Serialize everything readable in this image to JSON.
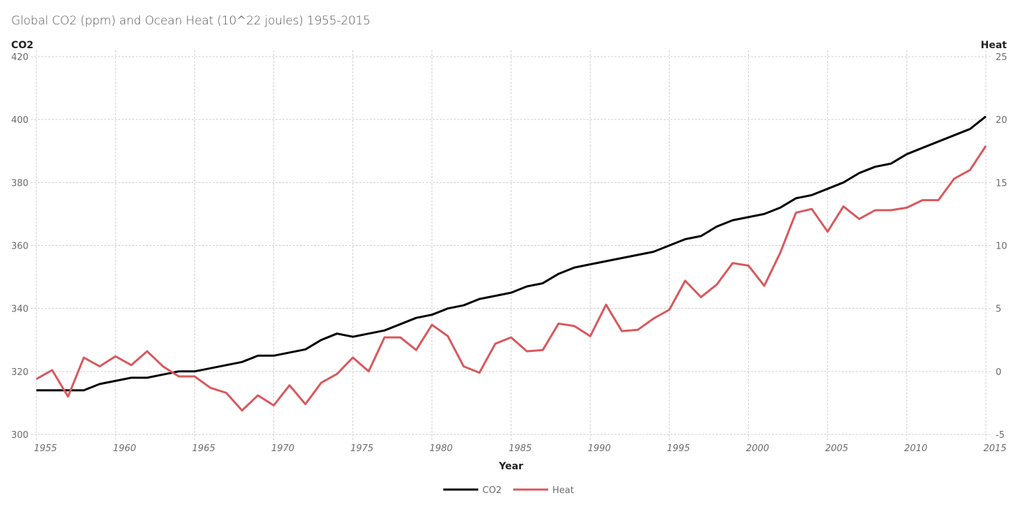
{
  "chart_data": {
    "type": "line",
    "title": "Global CO2 (ppm) and Ocean Heat (10^22 joules) 1955-2015",
    "xlabel": "Year",
    "ylabel_left": "CO2",
    "ylabel_right": "Heat",
    "ylim_left": [
      300,
      420
    ],
    "ylim_right": [
      -5,
      25
    ],
    "xlim": [
      1955,
      2015
    ],
    "yticks_left": [
      300,
      320,
      340,
      360,
      380,
      400,
      420
    ],
    "yticks_right": [
      -5,
      0,
      5,
      10,
      15,
      20,
      25
    ],
    "xticks": [
      1955,
      1960,
      1965,
      1970,
      1975,
      1980,
      1985,
      1990,
      1995,
      2000,
      2005,
      2010,
      2015
    ],
    "grid": true,
    "legend_position": "bottom-center",
    "x": [
      1955,
      1956,
      1957,
      1958,
      1959,
      1960,
      1961,
      1962,
      1963,
      1964,
      1965,
      1966,
      1967,
      1968,
      1969,
      1970,
      1971,
      1972,
      1973,
      1974,
      1975,
      1976,
      1977,
      1978,
      1979,
      1980,
      1981,
      1982,
      1983,
      1984,
      1985,
      1986,
      1987,
      1988,
      1989,
      1990,
      1991,
      1992,
      1993,
      1994,
      1995,
      1996,
      1997,
      1998,
      1999,
      2000,
      2001,
      2002,
      2003,
      2004,
      2005,
      2006,
      2007,
      2008,
      2009,
      2010,
      2011,
      2012,
      2013,
      2014,
      2015
    ],
    "series": [
      {
        "name": "CO2",
        "axis": "left",
        "color": "#000000",
        "values": [
          314,
          314,
          314,
          314,
          316,
          317,
          318,
          318,
          319,
          320,
          320,
          321,
          322,
          323,
          325,
          325,
          326,
          327,
          330,
          332,
          331,
          332,
          333,
          335,
          337,
          338,
          340,
          341,
          343,
          344,
          345,
          347,
          348,
          351,
          353,
          354,
          355,
          356,
          357,
          358,
          360,
          362,
          363,
          366,
          368,
          369,
          370,
          372,
          375,
          376,
          378,
          380,
          383,
          385,
          386,
          389,
          391,
          393,
          395,
          397,
          401
        ]
      },
      {
        "name": "Heat",
        "axis": "right",
        "color": "#d9585c",
        "values": [
          -0.6,
          0.1,
          -2.0,
          1.1,
          0.4,
          1.2,
          0.5,
          1.6,
          0.4,
          -0.4,
          -0.4,
          -1.3,
          -1.7,
          -3.1,
          -1.9,
          -2.7,
          -1.1,
          -2.6,
          -0.9,
          -0.2,
          1.1,
          0.0,
          2.7,
          2.7,
          1.7,
          3.7,
          2.8,
          0.4,
          -0.1,
          2.2,
          2.7,
          1.6,
          1.7,
          3.8,
          3.6,
          2.8,
          5.3,
          3.2,
          3.3,
          4.2,
          4.9,
          7.2,
          5.9,
          6.9,
          8.6,
          8.4,
          6.8,
          9.4,
          12.6,
          12.9,
          11.1,
          13.1,
          12.1,
          12.8,
          12.8,
          13.0,
          13.6,
          13.6,
          15.3,
          16.0,
          17.9
        ]
      }
    ]
  }
}
